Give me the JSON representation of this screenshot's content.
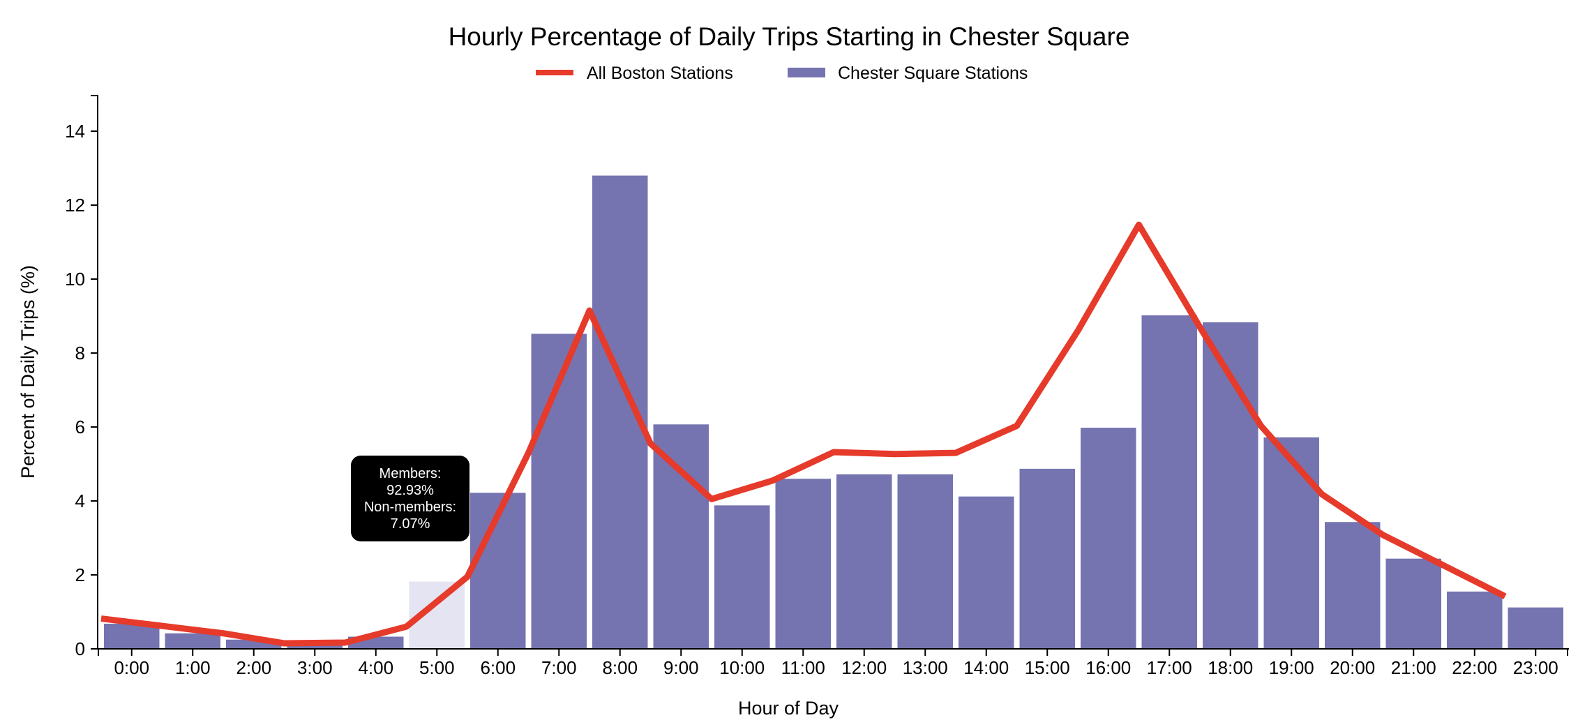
{
  "chart_data": {
    "type": "bar",
    "title": "Hourly Percentage of Daily Trips Starting in Chester Square",
    "xlabel": "Hour of Day",
    "ylabel": "Percent of Daily Trips (%)",
    "ylim": [
      0,
      15
    ],
    "yticks": [
      "0",
      "2",
      "4",
      "6",
      "8",
      "10",
      "12",
      "14"
    ],
    "categories": [
      "0:00",
      "1:00",
      "2:00",
      "3:00",
      "4:00",
      "5:00",
      "6:00",
      "7:00",
      "8:00",
      "9:00",
      "10:00",
      "11:00",
      "12:00",
      "13:00",
      "14:00",
      "15:00",
      "16:00",
      "17:00",
      "18:00",
      "19:00",
      "20:00",
      "21:00",
      "22:00",
      "23:00"
    ],
    "legend": {
      "placement": "top-center"
    },
    "series": [
      {
        "name": "Chester Square Stations",
        "type": "bar",
        "color": "#7574b0",
        "values": [
          0.68,
          0.42,
          0.25,
          0.15,
          0.33,
          1.82,
          4.22,
          8.52,
          12.8,
          6.07,
          3.88,
          4.6,
          4.72,
          4.72,
          4.12,
          4.87,
          5.98,
          9.02,
          8.83,
          5.72,
          3.43,
          2.44,
          1.55,
          1.12
        ]
      },
      {
        "name": "All Boston Stations",
        "type": "line",
        "color": "#e63a2b",
        "values": [
          0.82,
          0.62,
          0.42,
          0.15,
          0.17,
          0.6,
          1.95,
          5.3,
          9.15,
          5.55,
          4.05,
          4.55,
          5.32,
          5.27,
          5.3,
          6.03,
          8.6,
          11.47,
          8.7,
          6.03,
          4.18,
          3.08,
          2.25,
          1.42
        ]
      }
    ],
    "highlighted_category": "5:00",
    "highlight_color": "#e4e4f2"
  },
  "tooltip": {
    "line1": "Members:",
    "line2": "92.93%",
    "line3": "Non-members:",
    "line4": "7.07%"
  }
}
